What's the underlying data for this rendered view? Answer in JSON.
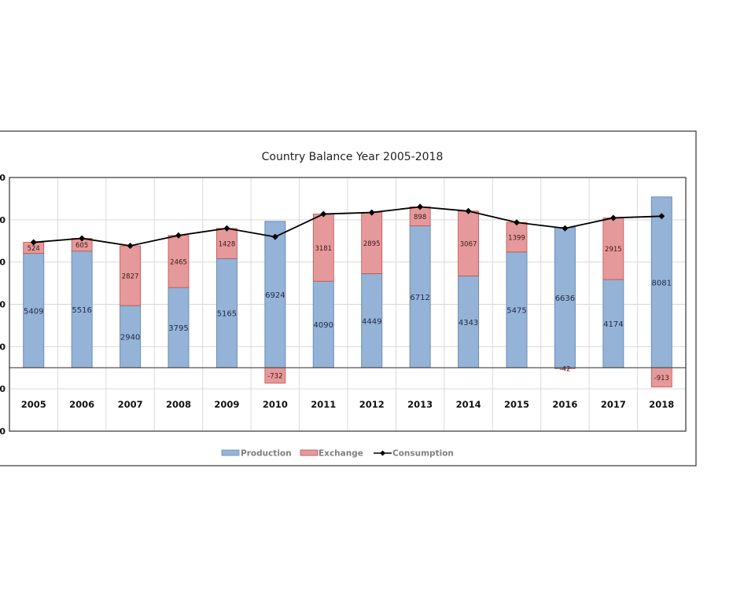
{
  "chart_data": {
    "type": "bar",
    "subtype": "stacked-bar-with-line",
    "title": "Country Balance Year 2005-2018",
    "xlabel": "",
    "ylabel": "",
    "categories": [
      "2005",
      "2006",
      "2007",
      "2008",
      "2009",
      "2010",
      "2011",
      "2012",
      "2013",
      "2014",
      "2015",
      "2016",
      "2017",
      "2018"
    ],
    "series": [
      {
        "name": "Production",
        "kind": "bar",
        "color": "#95b3d7",
        "edge": "#6b8cba",
        "values": [
          5409,
          5516,
          2940,
          3795,
          5165,
          6924,
          4090,
          4449,
          6712,
          4343,
          5475,
          6636,
          4174,
          8081
        ]
      },
      {
        "name": "Exchange",
        "kind": "bar",
        "color": "#e6999a",
        "edge": "#c0504d",
        "values": [
          524,
          605,
          2827,
          2465,
          1428,
          -732,
          3181,
          2895,
          898,
          3067,
          1399,
          -42,
          2915,
          -913
        ]
      },
      {
        "name": "Consumption",
        "kind": "line",
        "color": "#000000",
        "marker": "diamond",
        "values": [
          5933,
          6121,
          5767,
          6260,
          6593,
          6192,
          7271,
          7344,
          7610,
          7410,
          6874,
          6594,
          7089,
          7168
        ]
      }
    ],
    "ylim": [
      -3000,
      9000
    ],
    "yticks": [
      -3000,
      -1000,
      1000,
      3000,
      5000,
      7000,
      9000
    ],
    "ytick_labels_visible": [
      "0",
      "0",
      "0",
      "0",
      "0",
      "0",
      "0"
    ],
    "grid": true,
    "legend": {
      "position": "bottom",
      "entries": [
        "Production",
        "Exchange",
        "Consumption"
      ]
    }
  }
}
